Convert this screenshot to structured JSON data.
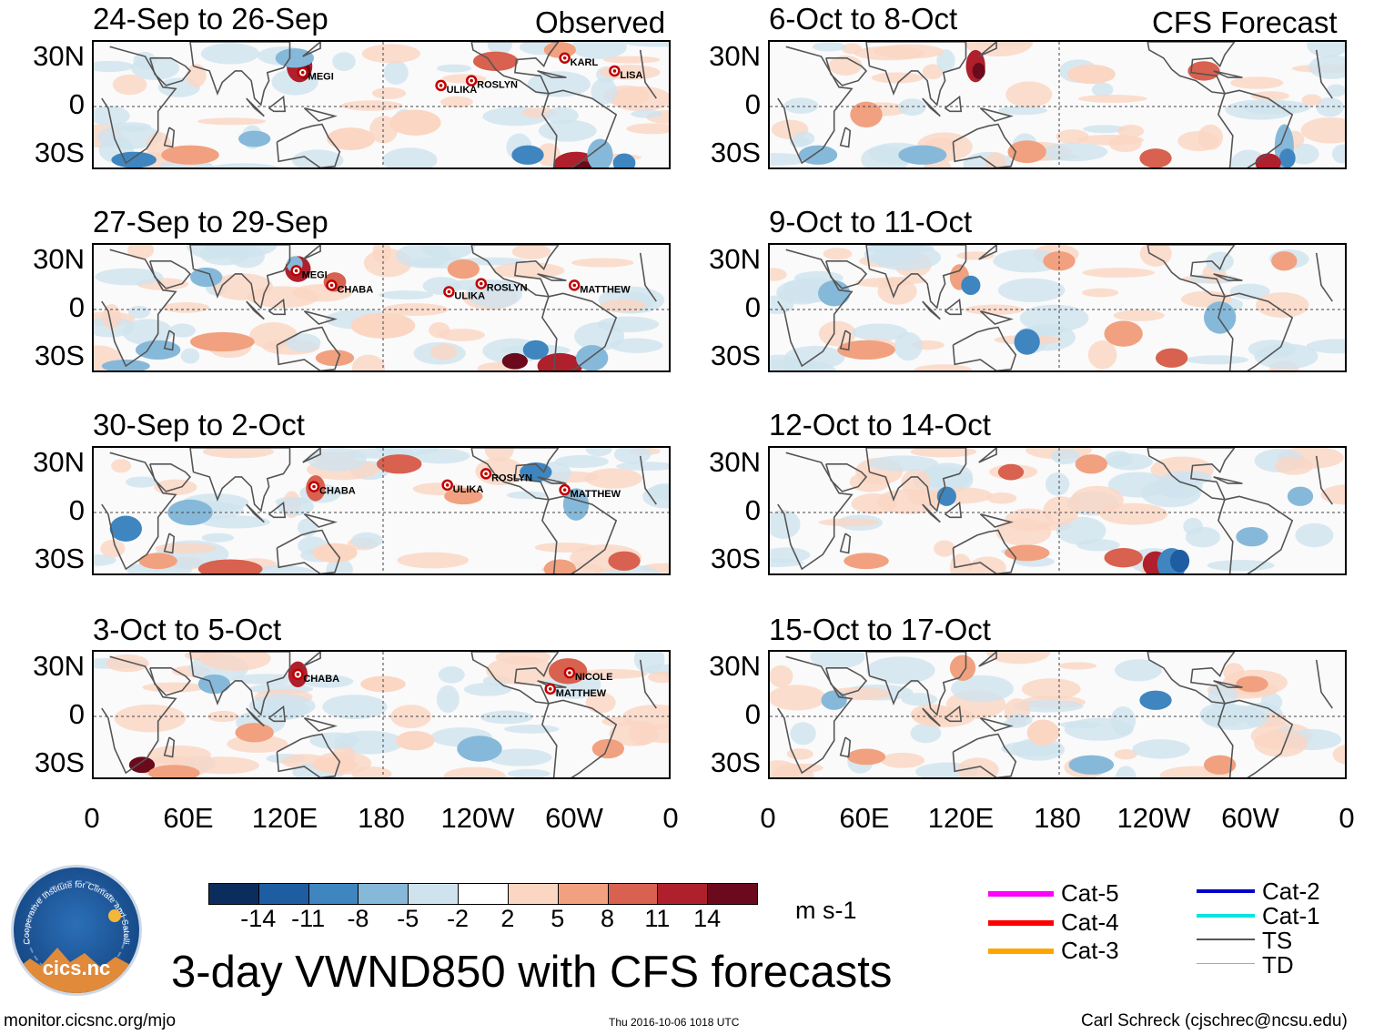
{
  "headers": {
    "observed": "Observed",
    "forecast": "CFS Forecast"
  },
  "panels": [
    {
      "col": 0,
      "row": 0,
      "period": "24-Sep to 26-Sep",
      "storms": [
        "MEGI",
        "ULIKA",
        "ROSLYN",
        "KARL",
        "LISA"
      ]
    },
    {
      "col": 0,
      "row": 1,
      "period": "27-Sep to 29-Sep",
      "storms": [
        "MEGI",
        "CHABA",
        "ULIKA",
        "ROSLYN",
        "MATTHEW"
      ]
    },
    {
      "col": 0,
      "row": 2,
      "period": "30-Sep to 2-Oct",
      "storms": [
        "CHABA",
        "ULIKA",
        "ROSLYN",
        "MATTHEW"
      ]
    },
    {
      "col": 0,
      "row": 3,
      "period": "3-Oct to 5-Oct",
      "storms": [
        "CHABA",
        "NICOLE",
        "MATTHEW"
      ]
    },
    {
      "col": 1,
      "row": 0,
      "period": "6-Oct to 8-Oct",
      "storms": []
    },
    {
      "col": 1,
      "row": 1,
      "period": "9-Oct to 11-Oct",
      "storms": []
    },
    {
      "col": 1,
      "row": 2,
      "period": "12-Oct to 14-Oct",
      "storms": []
    },
    {
      "col": 1,
      "row": 3,
      "period": "15-Oct to 17-Oct",
      "storms": []
    }
  ],
  "lat_labels": [
    "30N",
    "0",
    "30S"
  ],
  "lon_labels": [
    "0",
    "60E",
    "120E",
    "180",
    "120W",
    "60W",
    "0"
  ],
  "chart_data": {
    "type": "heatmap",
    "title": "3-day VWND850 with CFS forecasts",
    "variable": "VWND850",
    "units": "m s-1",
    "x_range": [
      0,
      360
    ],
    "y_range": [
      -40,
      40
    ],
    "colorbar": {
      "ticks": [
        "-14",
        "-11",
        "-8",
        "-5",
        "-2",
        "2",
        "5",
        "8",
        "11",
        "14"
      ],
      "colors": [
        "#0b2d5e",
        "#1f5da3",
        "#3f86c0",
        "#86b9d9",
        "#cfe3ef",
        "#ffffff",
        "#fbd6c3",
        "#f1a17f",
        "#d8614f",
        "#b01f2c",
        "#6b0a1c"
      ]
    },
    "track_legend": [
      {
        "label": "Cat-5",
        "color": "#ff00ff"
      },
      {
        "label": "Cat-4",
        "color": "#ff0000"
      },
      {
        "label": "Cat-3",
        "color": "#ffa500"
      },
      {
        "label": "Cat-2",
        "color": "#0000cc"
      },
      {
        "label": "Cat-1",
        "color": "#00e5e5"
      },
      {
        "label": "TS",
        "color": "#555555"
      },
      {
        "label": "TD",
        "color": "#aaaaaa"
      }
    ],
    "storm_markers": [
      {
        "panel": 0,
        "name": "MEGI",
        "lon": 130,
        "lat": 21
      },
      {
        "panel": 0,
        "name": "ULIKA",
        "lon": 216,
        "lat": 13
      },
      {
        "panel": 0,
        "name": "ROSLYN",
        "lon": 235,
        "lat": 16
      },
      {
        "panel": 0,
        "name": "KARL",
        "lon": 293,
        "lat": 30
      },
      {
        "panel": 0,
        "name": "LISA",
        "lon": 324,
        "lat": 22
      },
      {
        "panel": 1,
        "name": "MEGI",
        "lon": 126,
        "lat": 24
      },
      {
        "panel": 1,
        "name": "CHABA",
        "lon": 148,
        "lat": 15
      },
      {
        "panel": 1,
        "name": "ULIKA",
        "lon": 221,
        "lat": 11
      },
      {
        "panel": 1,
        "name": "ROSLYN",
        "lon": 241,
        "lat": 16
      },
      {
        "panel": 1,
        "name": "MATTHEW",
        "lon": 299,
        "lat": 15
      },
      {
        "panel": 2,
        "name": "CHABA",
        "lon": 137,
        "lat": 16
      },
      {
        "panel": 2,
        "name": "ULIKA",
        "lon": 220,
        "lat": 17
      },
      {
        "panel": 2,
        "name": "ROSLYN",
        "lon": 244,
        "lat": 24
      },
      {
        "panel": 2,
        "name": "MATTHEW",
        "lon": 293,
        "lat": 14
      },
      {
        "panel": 3,
        "name": "CHABA",
        "lon": 127,
        "lat": 26
      },
      {
        "panel": 3,
        "name": "NICOLE",
        "lon": 296,
        "lat": 27
      },
      {
        "panel": 3,
        "name": "MATTHEW",
        "lon": 284,
        "lat": 17
      }
    ]
  },
  "footer": {
    "site": "monitor.cicsnc.org/mjo",
    "timestamp": "Thu 2016-10-06 1018 UTC",
    "author": "Carl Schreck (cjschrec@ncsu.edu)"
  },
  "logo": {
    "text": "cics.nc",
    "arc_text": "Cooperative Institute for Climate and Satellites"
  }
}
